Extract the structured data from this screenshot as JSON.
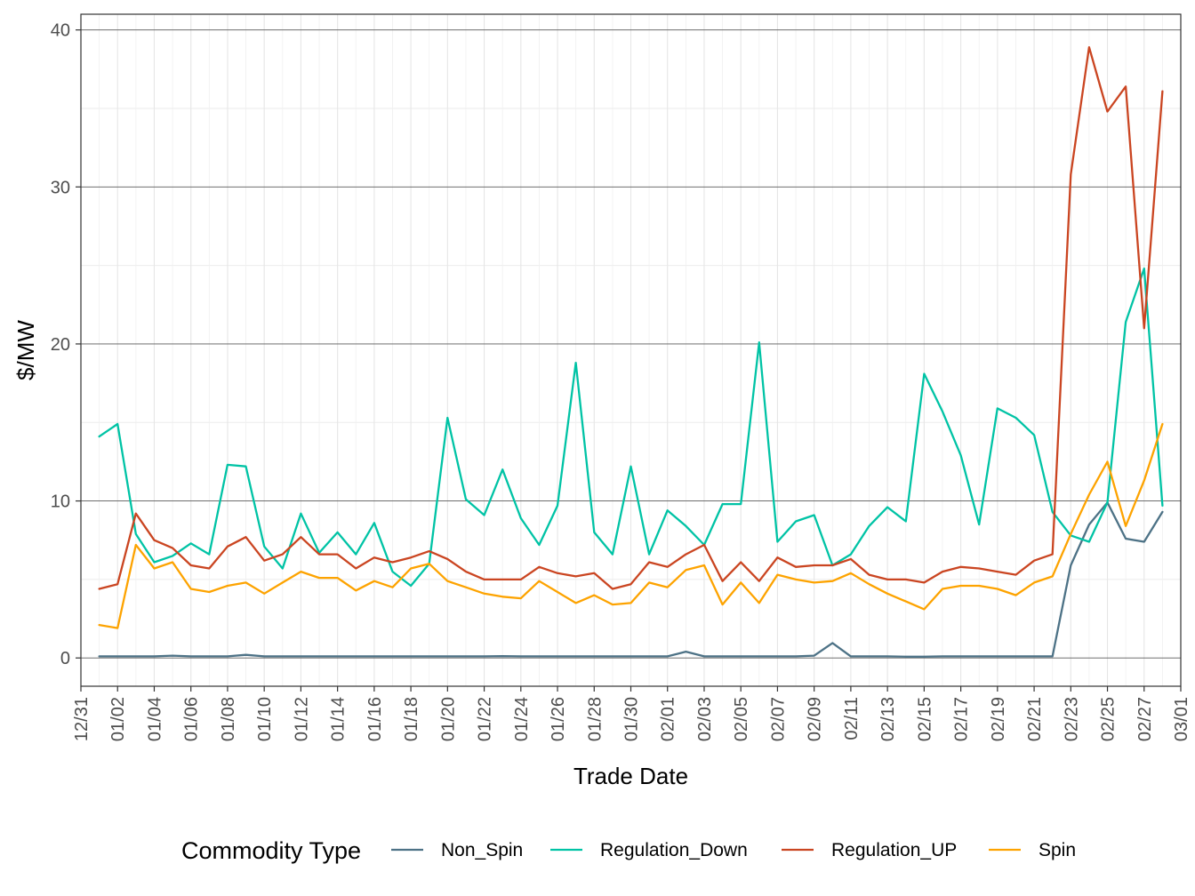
{
  "chart_data": {
    "type": "line",
    "xlabel": "Trade Date",
    "ylabel": "$/MW",
    "ylim": [
      -1.8,
      41.0
    ],
    "yticks": [
      0,
      10,
      20,
      30,
      40
    ],
    "ytick_labels": [
      "0",
      "10",
      "20",
      "30",
      "40"
    ],
    "xtick_labels": [
      "12/31",
      "01/02",
      "01/04",
      "01/06",
      "01/08",
      "01/10",
      "01/12",
      "01/14",
      "01/16",
      "01/18",
      "01/20",
      "01/22",
      "01/24",
      "01/26",
      "01/28",
      "01/30",
      "02/01",
      "02/03",
      "02/05",
      "02/07",
      "02/09",
      "02/11",
      "02/13",
      "02/15",
      "02/17",
      "02/19",
      "02/21",
      "02/23",
      "02/25",
      "02/27",
      "03/01"
    ],
    "xlim_days": [
      0,
      60
    ],
    "x": [
      "01/01",
      "01/02",
      "01/03",
      "01/04",
      "01/05",
      "01/06",
      "01/07",
      "01/08",
      "01/09",
      "01/10",
      "01/11",
      "01/12",
      "01/13",
      "01/14",
      "01/15",
      "01/16",
      "01/17",
      "01/18",
      "01/19",
      "01/20",
      "01/21",
      "01/22",
      "01/23",
      "01/24",
      "01/25",
      "01/26",
      "01/27",
      "01/28",
      "01/29",
      "01/30",
      "01/31",
      "02/01",
      "02/02",
      "02/03",
      "02/04",
      "02/05",
      "02/06",
      "02/07",
      "02/08",
      "02/09",
      "02/10",
      "02/11",
      "02/12",
      "02/13",
      "02/14",
      "02/15",
      "02/16",
      "02/17",
      "02/18",
      "02/19",
      "02/20",
      "02/21",
      "02/22",
      "02/23",
      "02/24",
      "02/25",
      "02/26",
      "02/27",
      "02/28"
    ],
    "grid": true,
    "legend": {
      "title": "Commodity Type",
      "position": "bottom"
    },
    "series": [
      {
        "name": "Non_Spin",
        "color": "#4d7286",
        "values": [
          0.1,
          0.1,
          0.1,
          0.1,
          0.15,
          0.1,
          0.1,
          0.1,
          0.2,
          0.1,
          0.1,
          0.1,
          0.1,
          0.1,
          0.1,
          0.1,
          0.1,
          0.1,
          0.1,
          0.1,
          0.1,
          0.1,
          0.12,
          0.1,
          0.1,
          0.1,
          0.1,
          0.1,
          0.1,
          0.1,
          0.1,
          0.1,
          0.4,
          0.1,
          0.1,
          0.1,
          0.1,
          0.1,
          0.1,
          0.15,
          0.95,
          0.1,
          0.1,
          0.1,
          0.08,
          0.08,
          0.1,
          0.1,
          0.1,
          0.1,
          0.1,
          0.1,
          0.1,
          5.9,
          8.5,
          9.9,
          7.6,
          7.4,
          9.3
        ]
      },
      {
        "name": "Regulation_Down",
        "color": "#00c3a5",
        "values": [
          14.1,
          14.9,
          7.9,
          6.1,
          6.5,
          7.3,
          6.6,
          12.3,
          12.2,
          7.1,
          5.7,
          9.2,
          6.7,
          8.0,
          6.6,
          8.6,
          5.5,
          4.6,
          6.0,
          15.3,
          10.1,
          9.1,
          12.0,
          8.9,
          7.2,
          9.7,
          18.8,
          8.0,
          6.6,
          12.2,
          6.6,
          9.4,
          8.4,
          7.2,
          9.8,
          9.8,
          20.1,
          7.4,
          8.7,
          9.1,
          5.9,
          6.6,
          8.4,
          9.6,
          8.7,
          18.1,
          15.7,
          12.9,
          8.5,
          15.9,
          15.3,
          14.2,
          9.3,
          7.8,
          7.4,
          9.9,
          21.4,
          24.8,
          9.7
        ]
      },
      {
        "name": "Regulation_UP",
        "color": "#ca4521",
        "values": [
          4.4,
          4.7,
          9.2,
          7.5,
          7.0,
          5.9,
          5.7,
          7.1,
          7.7,
          6.2,
          6.6,
          7.7,
          6.6,
          6.6,
          5.7,
          6.4,
          6.1,
          6.4,
          6.8,
          6.3,
          5.5,
          5.0,
          5.0,
          5.0,
          5.8,
          5.4,
          5.2,
          5.4,
          4.4,
          4.7,
          6.1,
          5.8,
          6.6,
          7.2,
          4.9,
          6.1,
          4.9,
          6.4,
          5.8,
          5.9,
          5.9,
          6.3,
          5.3,
          5.0,
          5.0,
          4.8,
          5.5,
          5.8,
          5.7,
          5.5,
          5.3,
          6.2,
          6.6,
          30.8,
          38.9,
          34.8,
          36.4,
          21.0,
          36.1
        ]
      },
      {
        "name": "Spin",
        "color": "#fda300",
        "values": [
          2.1,
          1.9,
          7.2,
          5.7,
          6.1,
          4.4,
          4.2,
          4.6,
          4.8,
          4.1,
          4.8,
          5.5,
          5.1,
          5.1,
          4.3,
          4.9,
          4.5,
          5.7,
          6.0,
          4.9,
          4.5,
          4.1,
          3.9,
          3.8,
          4.9,
          4.2,
          3.5,
          4.0,
          3.4,
          3.5,
          4.8,
          4.5,
          5.6,
          5.9,
          3.4,
          4.8,
          3.5,
          5.3,
          5.0,
          4.8,
          4.9,
          5.4,
          4.7,
          4.1,
          3.6,
          3.1,
          4.4,
          4.6,
          4.6,
          4.4,
          4.0,
          4.8,
          5.2,
          7.9,
          10.4,
          12.5,
          8.4,
          11.3,
          14.9
        ]
      }
    ]
  }
}
